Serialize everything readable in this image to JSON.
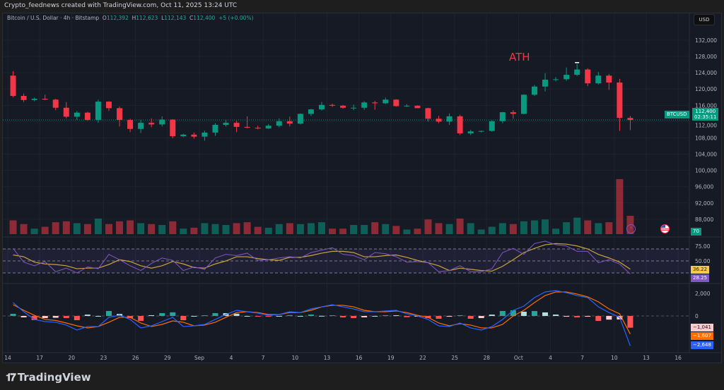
{
  "credit": "Crypto_feednews created with TradingView.com, Oct 11, 2025 13:24 UTC",
  "legend": {
    "symbol": "Bitcoin / U.S. Dollar · 4h · Bitstamp",
    "o_label": "O",
    "o": "112,392",
    "h_label": "H",
    "h": "112,623",
    "l_label": "L",
    "l": "112,143",
    "c_label": "C",
    "c": "112,400",
    "change": "+5 (+0.00%)"
  },
  "currency_button": "USD",
  "annotation": "ATH",
  "price_tag": {
    "symbol": "BTCUSD",
    "price": "112,400",
    "countdown": "02:35:11"
  },
  "volume_tag": "70",
  "rsi_tags": {
    "ma": "36.22",
    "rsi": "28.25"
  },
  "macd_tags": {
    "histogram": "−1,041",
    "signal": "−1,607",
    "macd": "−2,648"
  },
  "price_axis": [
    "132,000",
    "128,000",
    "124,000",
    "120,000",
    "116,000",
    "112,000",
    "108,000",
    "104,000",
    "100,000",
    "96,000",
    "92,000",
    "88,000"
  ],
  "rsi_axis": [
    "75.00",
    "50.00"
  ],
  "macd_axis": [
    "2,000",
    "0"
  ],
  "date_axis": [
    "14",
    "17",
    "20",
    "23",
    "26",
    "29",
    "Sep",
    "4",
    "7",
    "10",
    "13",
    "16",
    "19",
    "22",
    "25",
    "28",
    "Oct",
    "4",
    "7",
    "10",
    "13",
    "16"
  ],
  "logo": "TradingView",
  "colors": {
    "up": "#089981",
    "down": "#f23645",
    "rsi": "#7e57c2",
    "rsi_ma": "#c9a33a",
    "macd": "#2962ff",
    "signal": "#ff6d00",
    "accent": "#22ab94"
  },
  "icons": [
    "lightning-event-icon",
    "us-flag-event-icon",
    "tradingview-logo-icon"
  ],
  "chart_data": {
    "type": "candlestick",
    "title": "Bitcoin / U.S. Dollar · 4h · Bitstamp",
    "ylim": [
      86000,
      134000
    ],
    "dates": [
      "Aug 14",
      "Aug 15",
      "Aug 16",
      "Aug 17",
      "Aug 18",
      "Aug 19",
      "Aug 20",
      "Aug 21",
      "Aug 22",
      "Aug 23",
      "Aug 24",
      "Aug 25",
      "Aug 26",
      "Aug 27",
      "Aug 28",
      "Aug 29",
      "Aug 30",
      "Aug 31",
      "Sep 1",
      "Sep 2",
      "Sep 3",
      "Sep 4",
      "Sep 5",
      "Sep 6",
      "Sep 7",
      "Sep 8",
      "Sep 9",
      "Sep 10",
      "Sep 11",
      "Sep 12",
      "Sep 13",
      "Sep 14",
      "Sep 15",
      "Sep 16",
      "Sep 17",
      "Sep 18",
      "Sep 19",
      "Sep 20",
      "Sep 21",
      "Sep 22",
      "Sep 23",
      "Sep 24",
      "Sep 25",
      "Sep 26",
      "Sep 27",
      "Sep 28",
      "Sep 29",
      "Sep 30",
      "Oct 1",
      "Oct 2",
      "Oct 3",
      "Oct 4",
      "Oct 5",
      "Oct 6",
      "Oct 7",
      "Oct 8",
      "Oct 9",
      "Oct 10",
      "Oct 11"
    ],
    "ohlc": [
      [
        123300,
        124400,
        118000,
        118300
      ],
      [
        118300,
        118900,
        116800,
        117300
      ],
      [
        117300,
        117900,
        117000,
        117600
      ],
      [
        117600,
        118600,
        117300,
        117400
      ],
      [
        117400,
        117600,
        114800,
        115400
      ],
      [
        115400,
        116800,
        112800,
        113200
      ],
      [
        113200,
        114600,
        112400,
        114200
      ],
      [
        114200,
        114400,
        112200,
        112400
      ],
      [
        112400,
        117400,
        111700,
        116900
      ],
      [
        116900,
        117000,
        114600,
        115300
      ],
      [
        115300,
        115700,
        110800,
        112400
      ],
      [
        112400,
        112700,
        109400,
        110200
      ],
      [
        110200,
        112400,
        109200,
        111700
      ],
      [
        111700,
        112800,
        110600,
        111300
      ],
      [
        111300,
        113300,
        110800,
        112500
      ],
      [
        112500,
        112600,
        107900,
        108400
      ],
      [
        108400,
        109000,
        108200,
        108800
      ],
      [
        108800,
        109300,
        107800,
        108300
      ],
      [
        108300,
        109800,
        107300,
        109300
      ],
      [
        109300,
        111600,
        108500,
        111200
      ],
      [
        111200,
        112500,
        110800,
        111700
      ],
      [
        111700,
        112200,
        109400,
        110700
      ],
      [
        110700,
        113300,
        110300,
        110500
      ],
      [
        110500,
        111000,
        110100,
        110300
      ],
      [
        110300,
        111400,
        110200,
        111000
      ],
      [
        111000,
        112800,
        110600,
        112100
      ],
      [
        112100,
        113200,
        110800,
        111500
      ],
      [
        111500,
        114000,
        111300,
        113900
      ],
      [
        113900,
        115100,
        113400,
        115000
      ],
      [
        115000,
        116800,
        114700,
        116100
      ],
      [
        116100,
        116400,
        115600,
        115900
      ],
      [
        115900,
        116100,
        115200,
        115400
      ],
      [
        115400,
        116200,
        114800,
        115400
      ],
      [
        115400,
        117000,
        114900,
        116700
      ],
      [
        116700,
        117100,
        114900,
        116500
      ],
      [
        116500,
        117900,
        116300,
        117400
      ],
      [
        117400,
        117500,
        115700,
        115800
      ],
      [
        115800,
        116300,
        115600,
        115900
      ],
      [
        115900,
        116000,
        115300,
        115300
      ],
      [
        115300,
        115400,
        112000,
        112700
      ],
      [
        112700,
        113400,
        111600,
        112000
      ],
      [
        112000,
        114000,
        111200,
        113300
      ],
      [
        113300,
        113700,
        108700,
        109100
      ],
      [
        109100,
        110000,
        108700,
        109600
      ],
      [
        109600,
        109800,
        109300,
        109700
      ],
      [
        109700,
        112300,
        109500,
        112100
      ],
      [
        112100,
        114400,
        111600,
        114300
      ],
      [
        114300,
        114800,
        112700,
        113900
      ],
      [
        113900,
        118700,
        113800,
        118600
      ],
      [
        118600,
        121000,
        118300,
        120600
      ],
      [
        120600,
        123900,
        119400,
        122300
      ],
      [
        122300,
        122900,
        121900,
        122400
      ],
      [
        122400,
        125300,
        122000,
        123500
      ],
      [
        123500,
        126200,
        123200,
        124800
      ],
      [
        124800,
        125100,
        120700,
        121400
      ],
      [
        121400,
        124200,
        121100,
        123300
      ],
      [
        123300,
        123700,
        119800,
        121600
      ],
      [
        121600,
        122500,
        109700,
        112900
      ],
      [
        112900,
        113400,
        109900,
        112400
      ]
    ],
    "volume": [
      150,
      110,
      60,
      80,
      130,
      140,
      120,
      110,
      170,
      110,
      140,
      150,
      120,
      110,
      100,
      140,
      60,
      70,
      120,
      110,
      100,
      120,
      130,
      80,
      70,
      110,
      120,
      110,
      120,
      130,
      60,
      60,
      100,
      100,
      130,
      110,
      90,
      50,
      60,
      160,
      120,
      110,
      170,
      120,
      50,
      80,
      120,
      110,
      140,
      150,
      160,
      60,
      130,
      180,
      150,
      120,
      130,
      600,
      200
    ],
    "rsi": [
      71,
      48,
      42,
      49,
      32,
      38,
      30,
      40,
      37,
      61,
      52,
      42,
      34,
      46,
      55,
      51,
      34,
      40,
      36,
      55,
      61,
      59,
      63,
      51,
      52,
      55,
      57,
      55,
      64,
      68,
      72,
      61,
      59,
      52,
      64,
      62,
      57,
      48,
      49,
      47,
      32,
      34,
      42,
      32,
      32,
      37,
      64,
      71,
      61,
      79,
      83,
      77,
      75,
      66,
      66,
      47,
      52,
      45,
      28.25
    ],
    "rsi_ma": [
      60,
      57,
      48,
      45,
      44,
      42,
      37,
      38,
      38,
      44,
      52,
      49,
      42,
      38,
      42,
      49,
      45,
      39,
      38,
      45,
      50,
      57,
      57,
      54,
      52,
      51,
      56,
      56,
      59,
      63,
      66,
      66,
      64,
      57,
      57,
      59,
      60,
      56,
      51,
      47,
      42,
      34,
      38,
      36,
      34,
      33,
      41,
      52,
      64,
      71,
      77,
      79,
      78,
      75,
      70,
      61,
      55,
      48,
      36.22
    ],
    "rsi_levels": [
      70,
      50,
      30
    ],
    "macd": [
      1190,
      375,
      -310,
      -500,
      -560,
      -810,
      -1250,
      -940,
      -940,
      -120,
      60,
      -310,
      -1060,
      -875,
      -500,
      -120,
      -940,
      -875,
      -750,
      -310,
      125,
      500,
      375,
      250,
      60,
      125,
      375,
      300,
      625,
      810,
      1000,
      810,
      625,
      375,
      375,
      440,
      500,
      190,
      0,
      -310,
      -875,
      -940,
      -625,
      -1060,
      -1250,
      -940,
      -310,
      500,
      875,
      1625,
      2125,
      2250,
      2060,
      1810,
      1625,
      810,
      300,
      -120,
      -2648
    ],
    "signal": [
      1000,
      500,
      60,
      -310,
      -400,
      -625,
      -875,
      -1060,
      -940,
      -560,
      -120,
      -120,
      -625,
      -940,
      -750,
      -440,
      -560,
      -875,
      -810,
      -560,
      -120,
      300,
      375,
      300,
      125,
      125,
      300,
      300,
      500,
      800,
      940,
      940,
      810,
      500,
      375,
      375,
      440,
      300,
      60,
      -120,
      -625,
      -875,
      -690,
      -810,
      -1060,
      -1060,
      -750,
      0,
      500,
      1190,
      1810,
      2125,
      2125,
      1940,
      1690,
      1250,
      625,
      190,
      -1607
    ]
  }
}
